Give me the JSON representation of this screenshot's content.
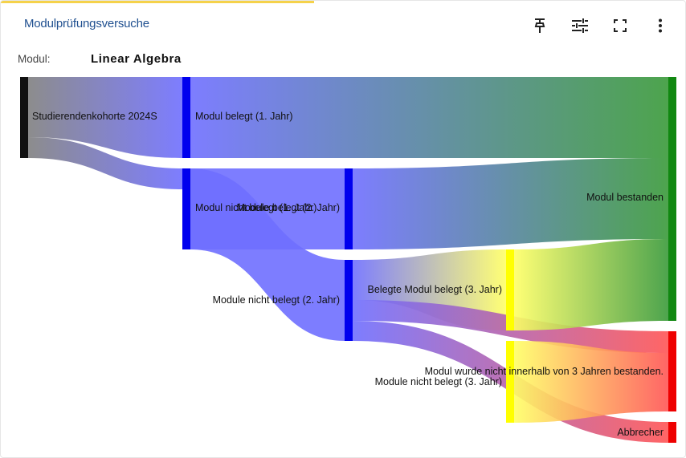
{
  "header": {
    "title": "Modulprüfungsversuche",
    "accent_color": "#f5d24b",
    "title_color": "#1f4f8f",
    "tools": [
      {
        "name": "pin-icon",
        "label": "Pin"
      },
      {
        "name": "tune-icon",
        "label": "Filter"
      },
      {
        "name": "fullscreen-icon",
        "label": "Vollbild"
      },
      {
        "name": "more-vert-icon",
        "label": "Mehr"
      }
    ]
  },
  "filter": {
    "label": "Modul:",
    "value": "Linear Algebra"
  },
  "chart_data": {
    "type": "sankey",
    "nodes": [
      {
        "id": "kohorte",
        "label": "Studierendenkohorte 2024S",
        "color": "#111111"
      },
      {
        "id": "belegt1",
        "label": "Modul belegt (1. Jahr)",
        "color": "#0000ee"
      },
      {
        "id": "nicht1",
        "label": "Modul nicht belegt (1. Jahr)",
        "color": "#0000ee"
      },
      {
        "id": "belegt2",
        "label": "Module belegt (2. Jahr)",
        "color": "#0000ee"
      },
      {
        "id": "nicht2",
        "label": "Module nicht belegt (2. Jahr)",
        "color": "#0000ee"
      },
      {
        "id": "belegt3",
        "label": "Belegte Modul belegt (3. Jahr)",
        "color": "#ffff00"
      },
      {
        "id": "nicht3",
        "label": "Module nicht belegt (3. Jahr)",
        "color": "#ffff00"
      },
      {
        "id": "bestanden",
        "label": "Modul bestanden",
        "color": "#118811"
      },
      {
        "id": "nicht_bestanden",
        "label": "Modul wurde nicht innerhalb von 3 Jahren bestanden.",
        "color": "#ee0000"
      },
      {
        "id": "abbrecher",
        "label": "Abbrecher",
        "color": "#ee0000"
      }
    ],
    "links": [
      {
        "source": "kohorte",
        "target": "belegt1",
        "value": 75
      },
      {
        "source": "kohorte",
        "target": "nicht1",
        "value": 25
      },
      {
        "source": "belegt1",
        "target": "bestanden",
        "value": 100
      },
      {
        "source": "nicht1",
        "target": "belegt2",
        "value": 100
      },
      {
        "source": "nicht1",
        "target": "nicht2",
        "value": 100
      },
      {
        "source": "belegt2",
        "target": "bestanden",
        "value": 100
      },
      {
        "source": "nicht2",
        "target": "belegt3",
        "value": 50
      },
      {
        "source": "nicht2",
        "target": "nicht_bestanden",
        "value": 25
      },
      {
        "source": "nicht2",
        "target": "abbrecher",
        "value": 25
      },
      {
        "source": "belegt3",
        "target": "bestanden",
        "value": 100
      },
      {
        "source": "nicht3",
        "target": "nicht_bestanden",
        "value": 100
      }
    ]
  }
}
